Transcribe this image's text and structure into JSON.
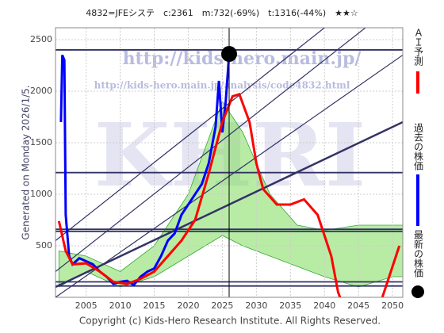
{
  "chart_data": {
    "type": "line",
    "title": "4832=JFEシステ　c:2361　m:732(-69%)　t:1316(-44%)　★★☆",
    "side_label": "Generated on Monday 2026/1/5.",
    "footer": "Copyright (c) Kids-Hero Research Institute. All Rights Reserved.",
    "watermarks": [
      "http://kids-hero.main.jp/",
      "http://kids-hero.main.jp/analysis/code4832.html",
      "KHRI"
    ],
    "xlim": [
      2000.5,
      2051.5
    ],
    "ylim": [
      0,
      2615
    ],
    "xticks": [
      2005,
      2010,
      2015,
      2020,
      2025,
      2030,
      2035,
      2040,
      2045,
      2050
    ],
    "yticks": [
      500,
      1000,
      1500,
      2000,
      2500
    ],
    "grid": true,
    "hlines": [
      2400,
      1210,
      660,
      640,
      150,
      110
    ],
    "band": {
      "color": "#7ddc5a",
      "x": [
        2001,
        2005,
        2010,
        2015,
        2020,
        2025,
        2028,
        2032,
        2036,
        2040,
        2045,
        2050,
        2051.5
      ],
      "lower": [
        100,
        250,
        100,
        200,
        400,
        600,
        500,
        400,
        300,
        200,
        100,
        200,
        200
      ],
      "upper": [
        450,
        400,
        250,
        500,
        1000,
        1900,
        1600,
        1000,
        700,
        650,
        700,
        700,
        700
      ]
    },
    "series": [
      {
        "name": "過去の株価",
        "color": "#0000ff",
        "x": [
          2001.3,
          2001.5,
          2001.8,
          2002,
          2002.5,
          2003,
          2004,
          2005,
          2006,
          2007,
          2008,
          2009,
          2010,
          2011,
          2012,
          2013,
          2014,
          2015,
          2016,
          2017,
          2018,
          2019,
          2020,
          2021,
          2022,
          2023,
          2024,
          2024.5,
          2025,
          2025.5,
          2026
        ],
        "values": [
          1700,
          2350,
          2300,
          800,
          400,
          320,
          380,
          350,
          320,
          250,
          200,
          130,
          150,
          160,
          120,
          200,
          250,
          280,
          400,
          550,
          620,
          800,
          900,
          1000,
          1100,
          1300,
          1650,
          2100,
          1600,
          1900,
          2361
        ]
      },
      {
        "name": "ＡＩ予測",
        "color": "#ff0000",
        "x": [
          2001,
          2002,
          2003,
          2005,
          2007,
          2009,
          2011,
          2013,
          2015,
          2017,
          2019,
          2021,
          2023,
          2025,
          2026.5,
          2027.5,
          2029,
          2030,
          2031,
          2033,
          2035,
          2037,
          2039,
          2041,
          2042,
          2044,
          2046,
          2048,
          2051
        ],
        "values": [
          740,
          450,
          320,
          330,
          250,
          150,
          130,
          180,
          250,
          400,
          550,
          750,
          1200,
          1700,
          1950,
          1970,
          1700,
          1300,
          1050,
          900,
          900,
          950,
          800,
          400,
          50,
          -300,
          -400,
          -100,
          500
        ]
      }
    ],
    "latest": {
      "name": "最新の株価",
      "color": "#000000",
      "x": 2026,
      "value": 2361
    }
  }
}
